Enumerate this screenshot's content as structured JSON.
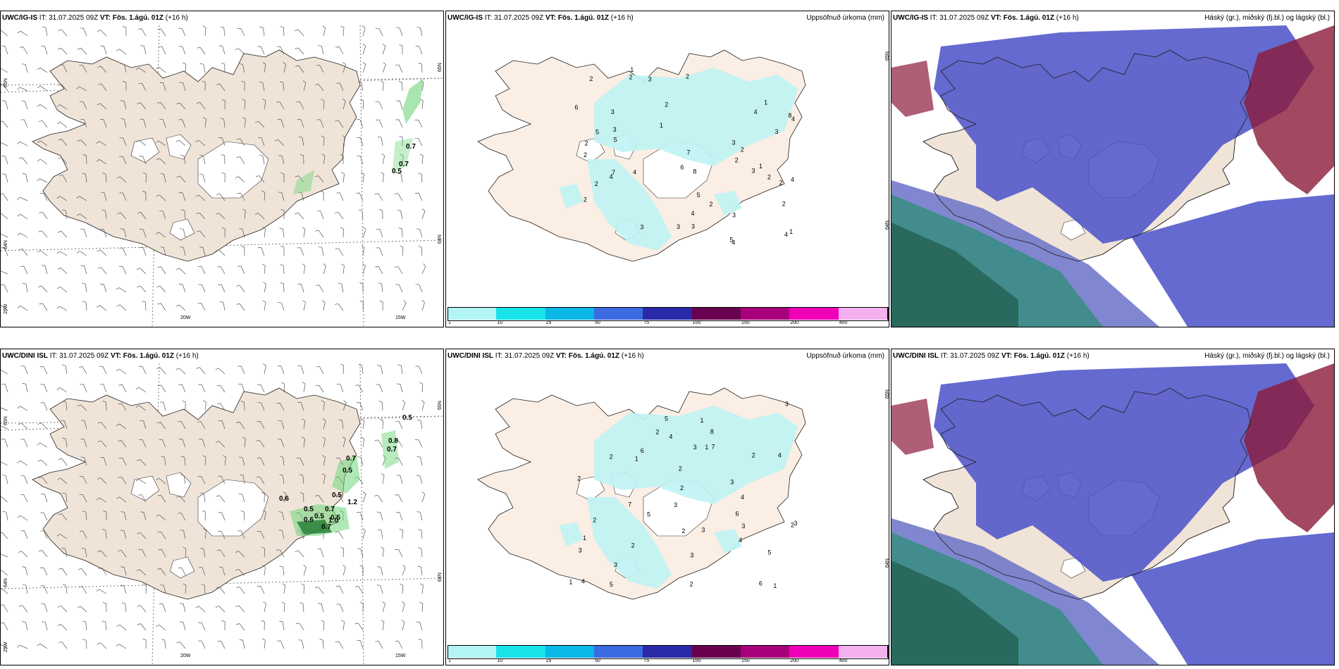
{
  "panels": [
    {
      "model": "UWC/IG-IS",
      "it_label": "IT:",
      "it": "31.07.2025 09Z",
      "vt_label": "VT:",
      "vt": "Fös. 1.ágú. 01Z",
      "lead": "(+16 h)",
      "right_title": "",
      "type": "wind",
      "lon_labels": [
        "20W",
        "15W"
      ],
      "lat_labels": [
        "65N",
        "64N",
        "25W"
      ],
      "values": [
        "0.7",
        "0.7",
        "0.5"
      ]
    },
    {
      "model": "UWC/IG-IS",
      "it_label": "IT:",
      "it": "31.07.2025 09Z",
      "vt_label": "VT:",
      "vt": "Fös. 1.ágú. 01Z",
      "lead": "(+16 h)",
      "right_title": "Uppsöfnuð úrkoma (mm)",
      "type": "precip",
      "lat_labels": [
        "65N",
        "64N"
      ],
      "values": [
        "2",
        "2",
        "1",
        "3",
        "2",
        "5",
        "4",
        "7",
        "8",
        "3",
        "2",
        "3",
        "2",
        "4",
        "4",
        "5",
        "2",
        "3",
        "4",
        "2",
        "6",
        "7",
        "2",
        "4",
        "3",
        "4",
        "2",
        "3",
        "5",
        "4",
        "5",
        "6",
        "8",
        "3",
        "2",
        "3",
        "2",
        "1",
        "3",
        "4",
        "2",
        "3",
        "2",
        "1",
        "2",
        "1",
        "1"
      ]
    },
    {
      "model": "UWC/IG-IS",
      "it_label": "IT:",
      "it": "31.07.2025 09Z",
      "vt_label": "VT:",
      "vt": "Fös. 1.ágú. 01Z",
      "lead": "(+16 h)",
      "right_title": "Háský (gr.), miðský (fj.bl.) og lágský (bl.)",
      "type": "cloud"
    },
    {
      "model": "UWC/DINI ISL",
      "it_label": "IT:",
      "it": "31.07.2025 09Z",
      "vt_label": "VT:",
      "vt": "Fös. 1.ágú. 01Z",
      "lead": "(+16 h)",
      "right_title": "",
      "type": "wind",
      "lon_labels": [
        "20W",
        "15W"
      ],
      "lat_labels": [
        "65N",
        "64N",
        "25W"
      ],
      "values": [
        "0.5",
        "0.7",
        "0.8",
        "0.7",
        "0.5",
        "0.6",
        "0.5",
        "0.7",
        "0.5",
        "1.2",
        "0.6",
        "0.5",
        "1.0",
        "0.7",
        "0.5"
      ]
    },
    {
      "model": "UWC/DINI ISL",
      "it_label": "IT:",
      "it": "31.07.2025 09Z",
      "vt_label": "VT:",
      "vt": "Fös. 1.ágú. 01Z",
      "lead": "(+16 h)",
      "right_title": "Uppsöfnuð úrkoma (mm)",
      "type": "precip",
      "lat_labels": [
        "65N",
        "64N"
      ],
      "values": [
        "2",
        "1",
        "3",
        "2",
        "4",
        "3",
        "5",
        "2",
        "6",
        "7",
        "4",
        "2",
        "8",
        "3",
        "5",
        "4",
        "6",
        "3",
        "2",
        "4",
        "3",
        "7",
        "2",
        "5",
        "3",
        "4",
        "2",
        "3",
        "1",
        "2",
        "3",
        "1",
        "5",
        "2",
        "6",
        "3",
        "2",
        "1",
        "3",
        "2",
        "1",
        "1"
      ]
    },
    {
      "model": "UWC/DINI ISL",
      "it_label": "IT:",
      "it": "31.07.2025 09Z",
      "vt_label": "VT:",
      "vt": "Fös. 1.ágú. 01Z",
      "lead": "(+16 h)",
      "right_title": "Háský (gr.), miðský (fj.bl.) og lágský (bl.)",
      "type": "cloud"
    }
  ],
  "colorbar": {
    "colors": [
      "#b3f5f5",
      "#17e3e8",
      "#0ab8e8",
      "#3b6be0",
      "#2a2aa8",
      "#6a0050",
      "#a8007a",
      "#f000b8",
      "#f5b0f0"
    ],
    "labels": [
      "1",
      "10",
      "25",
      "50",
      "75",
      "100",
      "150",
      "200",
      "400"
    ]
  },
  "colors": {
    "land": "#f0e4d8",
    "precip": "#bff3f3",
    "wind_green": "#6fd67a",
    "cloud_high": "#8b1a3a",
    "cloud_mid": "#4a50c8",
    "cloud_low": "#2a8f70"
  }
}
